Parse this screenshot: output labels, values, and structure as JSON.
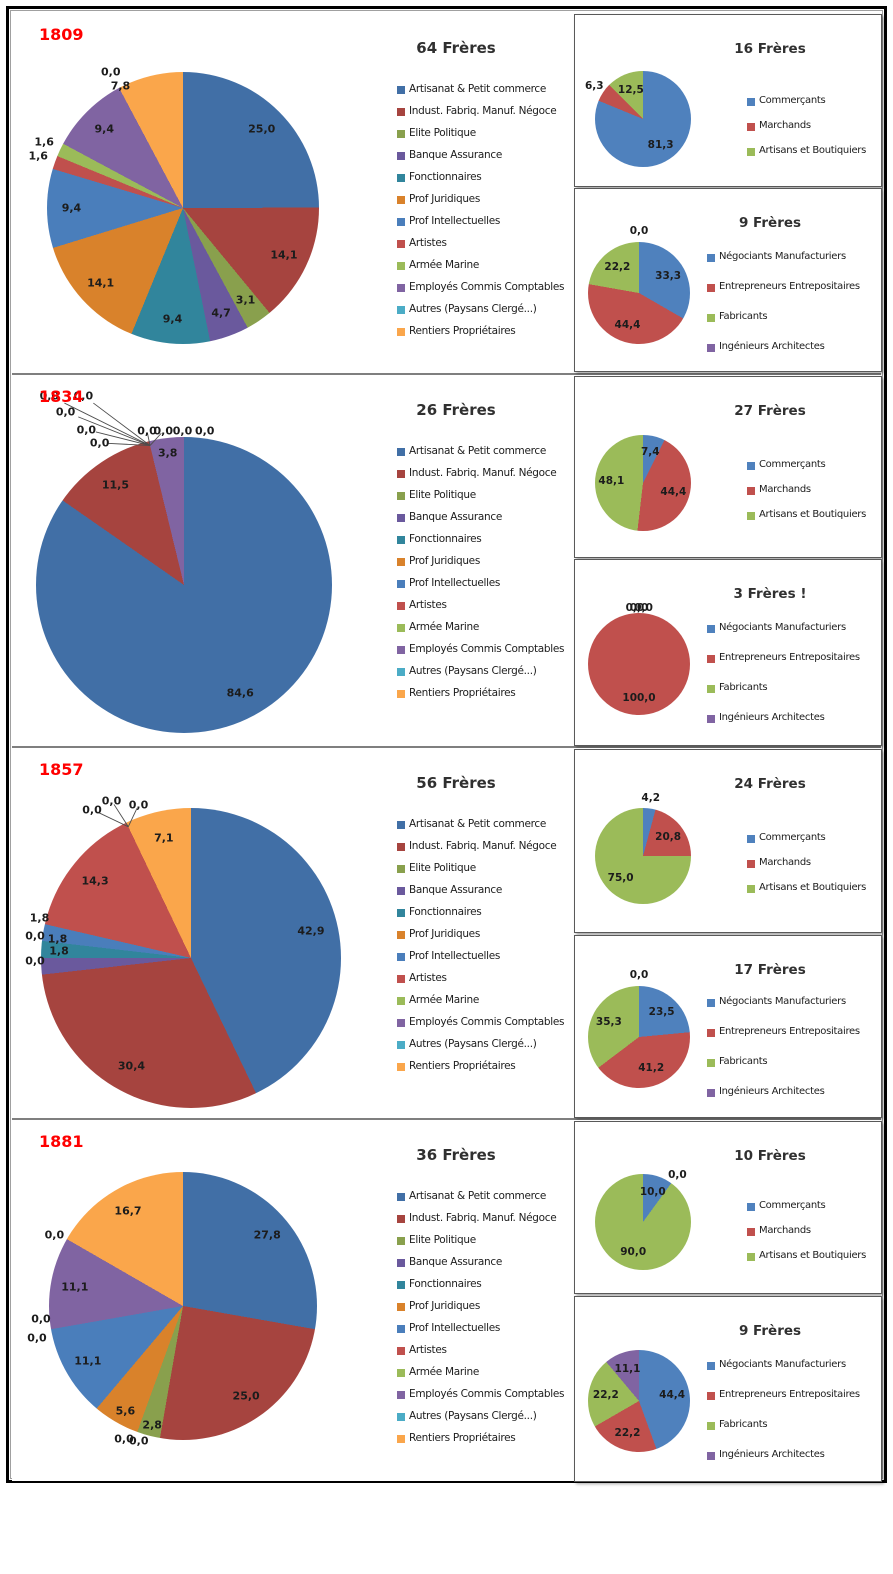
{
  "years": [
    "1809",
    "1834",
    "1857",
    "1881"
  ],
  "colors": {
    "year_label": "#ff0000",
    "divider": "#7f7f7f",
    "frame": "#000000"
  },
  "legend_sets": {
    "main12": {
      "labels": [
        "Artisanat & Petit commerce",
        "Indust. Fabriq. Manuf. Négoce",
        "Elite Politique",
        "Banque Assurance",
        "Fonctionnaires",
        "Prof Juridiques",
        "Prof Intellectuelles",
        "Artistes",
        "Armée Marine",
        "Employés Commis Comptables",
        "Autres (Paysans Clergé...)",
        "Rentiers Propriétaires"
      ],
      "colors": [
        "#416FA6",
        "#A6443F",
        "#89A04D",
        "#6A599D",
        "#31859C",
        "#D9822B",
        "#4A7EBB",
        "#C0504D",
        "#9BBB59",
        "#8064A2",
        "#4BACC6",
        "#FAA64B"
      ]
    },
    "commerce3": {
      "labels": [
        "Commerçants",
        "Marchands",
        "Artisans et Boutiquiers"
      ],
      "colors": [
        "#4F81BD",
        "#C0504D",
        "#9BBB59"
      ]
    },
    "industrie4": {
      "labels": [
        "Négociants Manufacturiers",
        "Entrepreneurs Entrepositaires",
        "Fabricants",
        "Ingénieurs Architectes"
      ],
      "colors": [
        "#4F81BD",
        "#C0504D",
        "#9BBB59",
        "#8064A2"
      ]
    }
  },
  "chart_data": [
    {
      "id": "1809-professions",
      "type": "pie",
      "title": "64 Frères",
      "cat_set": "main12",
      "categories": [
        "Artisanat & Petit commerce",
        "Indust. Fabriq. Manuf. Négoce",
        "Elite Politique",
        "Banque Assurance",
        "Fonctionnaires",
        "Prof Juridiques",
        "Prof Intellectuelles",
        "Artistes",
        "Armée Marine",
        "Employés Commis Comptables",
        "Autres (Paysans Clergé...)",
        "Rentiers Propriétaires"
      ],
      "values": [
        25.0,
        14.1,
        3.1,
        4.7,
        9.4,
        14.1,
        9.4,
        1.6,
        1.6,
        9.4,
        0.0,
        7.8
      ],
      "unit": "percent",
      "data_labels": true,
      "label_overrides": {
        "2": [
          0.46,
          0.68
        ],
        "3": [
          0.28,
          0.77
        ],
        "11": [
          -0.46,
          -0.9
        ]
      }
    },
    {
      "id": "1809-commerce",
      "type": "pie",
      "title": "16 Frères",
      "cat_set": "commerce3",
      "categories": [
        "Commerçants",
        "Marchands",
        "Artisans et Boutiquiers"
      ],
      "values": [
        81.3,
        6.3,
        12.5
      ],
      "unit": "percent",
      "data_labels": true
    },
    {
      "id": "1809-industrie",
      "type": "pie",
      "title": "9 Frères",
      "cat_set": "industrie4",
      "categories": [
        "Négociants Manufacturiers",
        "Entrepreneurs Entrepositaires",
        "Fabricants",
        "Ingénieurs Architectes"
      ],
      "values": [
        33.3,
        44.4,
        22.2,
        0.0
      ],
      "unit": "percent",
      "data_labels": true
    },
    {
      "id": "1834-professions",
      "type": "pie",
      "title": "26 Frères",
      "cat_set": "main12",
      "categories": [
        "Artisanat & Petit commerce",
        "Indust. Fabriq. Manuf. Négoce",
        "Elite Politique",
        "Banque Assurance",
        "Fonctionnaires",
        "Prof Juridiques",
        "Prof Intellectuelles",
        "Artistes",
        "Armée Marine",
        "Employés Commis Comptables",
        "Autres (Paysans Clergé...)",
        "Rentiers Propriétaires"
      ],
      "values": [
        84.6,
        11.5,
        0.0,
        0.0,
        0.0,
        0.0,
        0.0,
        0.0,
        0.0,
        3.8,
        0.0,
        0.0
      ],
      "unit": "percent",
      "data_labels": true,
      "label_overrides": {
        "2": [
          -0.91,
          -1.28
        ],
        "3": [
          -0.68,
          -1.28
        ],
        "4": [
          -0.8,
          -1.17
        ],
        "5": [
          -0.66,
          -1.05
        ],
        "6": [
          -0.57,
          -0.96
        ],
        "7": [
          -0.25,
          -1.04
        ],
        "8": [
          -0.14,
          -1.04
        ],
        "9": [
          -0.11,
          -0.89
        ],
        "10": [
          -0.01,
          -1.04
        ],
        "11": [
          0.14,
          -1.04
        ]
      },
      "leader_lines": [
        2,
        3,
        4,
        5,
        6,
        7,
        8
      ]
    },
    {
      "id": "1834-commerce",
      "type": "pie",
      "title": "27 Frères",
      "cat_set": "commerce3",
      "categories": [
        "Commerçants",
        "Marchands",
        "Artisans et Boutiquiers"
      ],
      "values": [
        7.4,
        44.4,
        48.1
      ],
      "unit": "percent",
      "data_labels": true
    },
    {
      "id": "1834-industrie",
      "type": "pie",
      "title": "3 Frères !",
      "cat_set": "industrie4",
      "categories": [
        "Négociants Manufacturiers",
        "Entrepreneurs Entrepositaires",
        "Fabricants",
        "Ingénieurs Architectes"
      ],
      "values": [
        0.0,
        100.0,
        0.0,
        0.0
      ],
      "unit": "percent",
      "data_labels": true,
      "label_overrides": {
        "0": [
          -0.08,
          -1.1
        ],
        "2": [
          0.0,
          -1.1
        ],
        "3": [
          0.09,
          -1.1
        ]
      }
    },
    {
      "id": "1857-professions",
      "type": "pie",
      "title": "56 Frères",
      "cat_set": "main12",
      "categories": [
        "Artisanat & Petit commerce",
        "Indust. Fabriq. Manuf. Négoce",
        "Elite Politique",
        "Banque Assurance",
        "Fonctionnaires",
        "Prof Juridiques",
        "Prof Intellectuelles",
        "Artistes",
        "Armée Marine",
        "Employés Commis Comptables",
        "Autres (Paysans Clergé...)",
        "Rentiers Propriétaires"
      ],
      "values": [
        42.9,
        30.4,
        0.0,
        1.8,
        1.8,
        0.0,
        1.8,
        14.3,
        0.0,
        0.0,
        0.0,
        7.1
      ],
      "unit": "percent",
      "data_labels": true,
      "label_overrides": {
        "2": [
          -1.04,
          0.02
        ],
        "3": [
          -0.88,
          -0.05
        ],
        "4": [
          -0.89,
          -0.13
        ],
        "5": [
          -1.04,
          -0.15
        ],
        "6": [
          -1.01,
          -0.27
        ],
        "8": [
          -0.66,
          -0.99
        ],
        "9": [
          -0.53,
          -1.05
        ],
        "10": [
          -0.35,
          -1.02
        ]
      },
      "leader_lines": [
        8,
        9,
        10
      ]
    },
    {
      "id": "1857-commerce",
      "type": "pie",
      "title": "24 Frères",
      "cat_set": "commerce3",
      "categories": [
        "Commerçants",
        "Marchands",
        "Artisans et Boutiquiers"
      ],
      "values": [
        4.2,
        20.8,
        75.0
      ],
      "unit": "percent",
      "data_labels": true
    },
    {
      "id": "1857-industrie",
      "type": "pie",
      "title": "17 Frères",
      "cat_set": "industrie4",
      "categories": [
        "Négociants Manufacturiers",
        "Entrepreneurs Entrepositaires",
        "Fabricants",
        "Ingénieurs Architectes"
      ],
      "values": [
        23.5,
        41.2,
        35.3,
        0.0
      ],
      "unit": "percent",
      "data_labels": true
    },
    {
      "id": "1881-professions",
      "type": "pie",
      "title": "36 Frères",
      "cat_set": "main12",
      "categories": [
        "Artisanat & Petit commerce",
        "Indust. Fabriq. Manuf. Négoce",
        "Elite Politique",
        "Banque Assurance",
        "Fonctionnaires",
        "Prof Juridiques",
        "Prof Intellectuelles",
        "Artistes",
        "Armée Marine",
        "Employés Commis Comptables",
        "Autres (Paysans Clergé...)",
        "Rentiers Propriétaires"
      ],
      "values": [
        27.8,
        25.0,
        2.8,
        0.0,
        0.0,
        5.6,
        11.1,
        0.0,
        0.0,
        11.1,
        0.0,
        16.7
      ],
      "unit": "percent",
      "data_labels": true,
      "label_overrides": {
        "2": [
          -0.23,
          0.89
        ],
        "3": [
          -0.44,
          0.99
        ],
        "4": [
          -0.33,
          1.01
        ],
        "5": [
          -0.43,
          0.78
        ],
        "7": [
          -1.06,
          0.1
        ],
        "8": [
          -1.09,
          0.24
        ],
        "10": [
          -0.96,
          -0.53
        ]
      }
    },
    {
      "id": "1881-commerce",
      "type": "pie",
      "title": "10 Frères",
      "cat_set": "commerce3",
      "categories": [
        "Commerçants",
        "Marchands",
        "Artisans et Boutiquiers"
      ],
      "values": [
        10.0,
        0.0,
        90.0
      ],
      "unit": "percent",
      "data_labels": true
    },
    {
      "id": "1881-industrie",
      "type": "pie",
      "title": "9 Frères",
      "cat_set": "industrie4",
      "categories": [
        "Négociants Manufacturiers",
        "Entrepreneurs Entrepositaires",
        "Fabricants",
        "Ingénieurs Architectes"
      ],
      "values": [
        44.4,
        22.2,
        22.2,
        11.1
      ],
      "unit": "percent",
      "data_labels": true
    }
  ]
}
